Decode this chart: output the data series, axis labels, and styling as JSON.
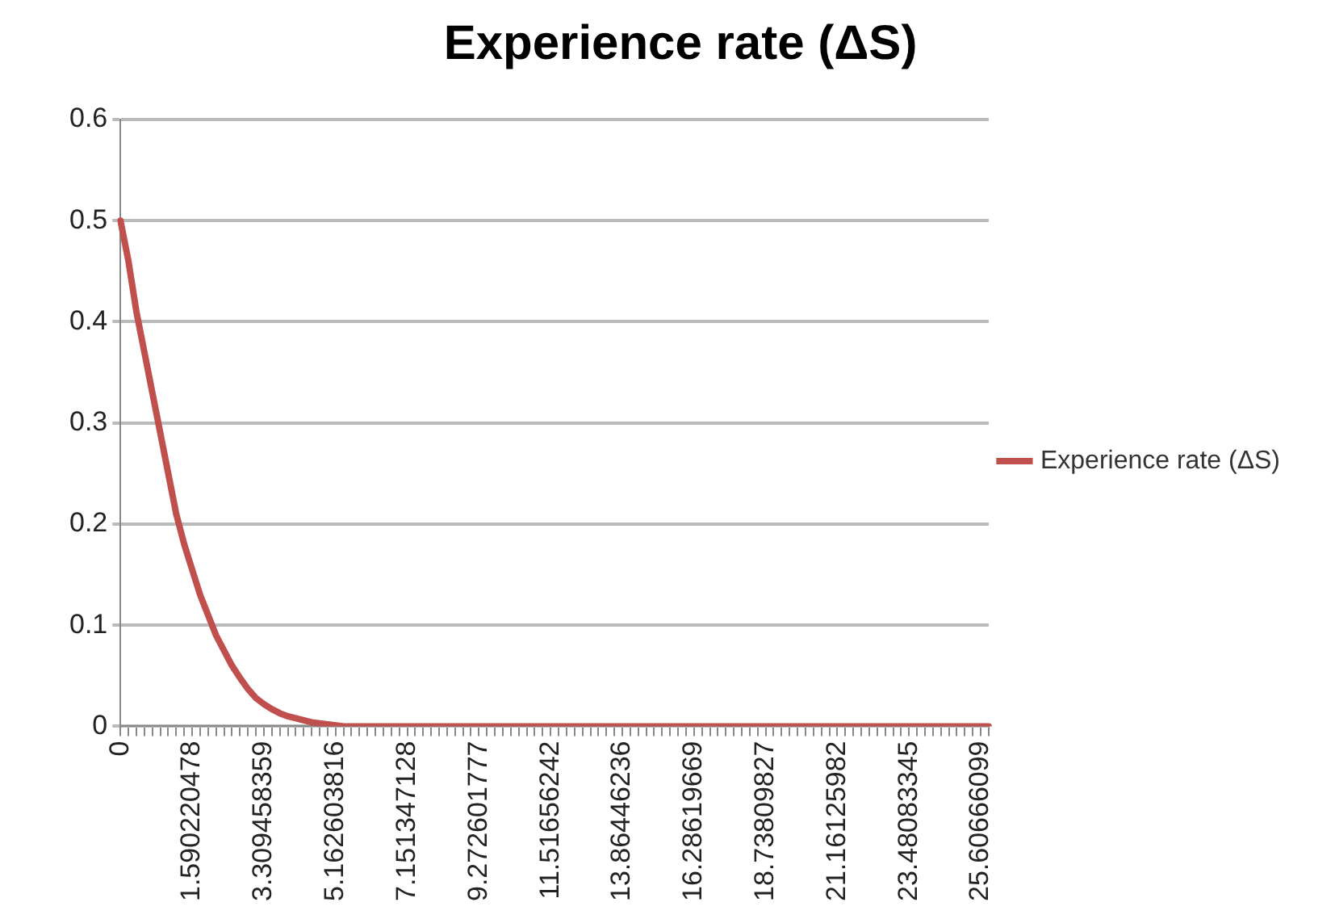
{
  "chart_data": {
    "type": "line",
    "title": "Experience rate (ΔS)",
    "categories": [
      "0",
      null,
      null,
      null,
      null,
      null,
      null,
      null,
      null,
      "1.590220478",
      null,
      null,
      null,
      null,
      null,
      null,
      null,
      null,
      "3.309458359",
      null,
      null,
      null,
      null,
      null,
      null,
      null,
      null,
      "5.162603816",
      null,
      null,
      null,
      null,
      null,
      null,
      null,
      null,
      "7.151347128",
      null,
      null,
      null,
      null,
      null,
      null,
      null,
      null,
      "9.272601777",
      null,
      null,
      null,
      null,
      null,
      null,
      null,
      null,
      "11.51656242",
      null,
      null,
      null,
      null,
      null,
      null,
      null,
      null,
      "13.86446236",
      null,
      null,
      null,
      null,
      null,
      null,
      null,
      null,
      "16.28619669",
      null,
      null,
      null,
      null,
      null,
      null,
      null,
      null,
      "18.73809827",
      null,
      null,
      null,
      null,
      null,
      null,
      null,
      null,
      "21.16125982",
      null,
      null,
      null,
      null,
      null,
      null,
      null,
      null,
      "23.48083345",
      null,
      null,
      null,
      null,
      null,
      null,
      null,
      null,
      "25.60666099",
      null
    ],
    "series": [
      {
        "name": "Experience rate (ΔS)",
        "color": "#c0504d",
        "values": [
          0.5,
          0.46,
          0.41,
          0.37,
          0.33,
          0.29,
          0.25,
          0.21,
          0.18,
          0.155,
          0.13,
          0.11,
          0.09,
          0.075,
          0.06,
          0.048,
          0.037,
          0.028,
          0.022,
          0.017,
          0.013,
          0.01,
          0.008,
          0.006,
          0.004,
          0.003,
          0.002,
          0.001,
          0,
          0,
          0,
          0,
          0,
          0,
          0,
          0,
          0,
          0,
          0,
          0,
          0,
          0,
          0,
          0,
          0,
          0,
          0,
          0,
          0,
          0,
          0,
          0,
          0,
          0,
          0,
          0,
          0,
          0,
          0,
          0,
          0,
          0,
          0,
          0,
          0,
          0,
          0,
          0,
          0,
          0,
          0,
          0,
          0,
          0,
          0,
          0,
          0,
          0,
          0,
          0,
          0,
          0,
          0,
          0,
          0,
          0,
          0,
          0,
          0,
          0,
          0,
          0,
          0,
          0,
          0,
          0,
          0,
          0,
          0,
          0,
          0,
          0,
          0,
          0,
          0,
          0,
          0,
          0,
          0,
          0
        ]
      }
    ],
    "ylim": [
      0,
      0.6
    ],
    "yticks": [
      0,
      0.1,
      0.2,
      0.3,
      0.4,
      0.5,
      0.6
    ],
    "grid": "y",
    "legend": "right",
    "marker": "none",
    "line_style": "solid"
  }
}
